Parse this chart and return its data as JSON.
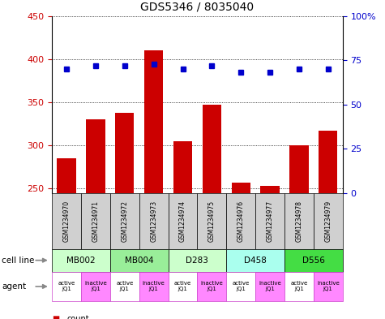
{
  "title": "GDS5346 / 8035040",
  "samples": [
    "GSM1234970",
    "GSM1234971",
    "GSM1234972",
    "GSM1234973",
    "GSM1234974",
    "GSM1234975",
    "GSM1234976",
    "GSM1234977",
    "GSM1234978",
    "GSM1234979"
  ],
  "counts": [
    285,
    330,
    338,
    410,
    305,
    347,
    257,
    253,
    300,
    317
  ],
  "percentiles": [
    70,
    72,
    72,
    73,
    70,
    72,
    68,
    68,
    70,
    70
  ],
  "ylim_left": [
    245,
    450
  ],
  "ylim_right": [
    0,
    100
  ],
  "yticks_left": [
    250,
    300,
    350,
    400,
    450
  ],
  "yticks_right": [
    0,
    25,
    50,
    75,
    100
  ],
  "bar_color": "#cc0000",
  "dot_color": "#0000cc",
  "cell_lines": [
    {
      "label": "MB002",
      "cols": [
        0,
        1
      ],
      "color": "#ccffcc"
    },
    {
      "label": "MB004",
      "cols": [
        2,
        3
      ],
      "color": "#99ee99"
    },
    {
      "label": "D283",
      "cols": [
        4,
        5
      ],
      "color": "#ccffcc"
    },
    {
      "label": "D458",
      "cols": [
        6,
        7
      ],
      "color": "#aaffee"
    },
    {
      "label": "D556",
      "cols": [
        8,
        9
      ],
      "color": "#44dd44"
    }
  ],
  "agents": [
    {
      "label": "active\nJQ1",
      "color": "#ffffff"
    },
    {
      "label": "inactive\nJQ1",
      "color": "#ff88ff"
    },
    {
      "label": "active\nJQ1",
      "color": "#ffffff"
    },
    {
      "label": "inactive\nJQ1",
      "color": "#ff88ff"
    },
    {
      "label": "active\nJQ1",
      "color": "#ffffff"
    },
    {
      "label": "inactive\nJQ1",
      "color": "#ff88ff"
    },
    {
      "label": "active\nJQ1",
      "color": "#ffffff"
    },
    {
      "label": "inactive\nJQ1",
      "color": "#ff88ff"
    },
    {
      "label": "active\nJQ1",
      "color": "#ffffff"
    },
    {
      "label": "inactive\nJQ1",
      "color": "#ff88ff"
    }
  ],
  "tick_color_left": "#cc0000",
  "tick_color_right": "#0000cc",
  "gsm_box_color": "#d0d0d0"
}
